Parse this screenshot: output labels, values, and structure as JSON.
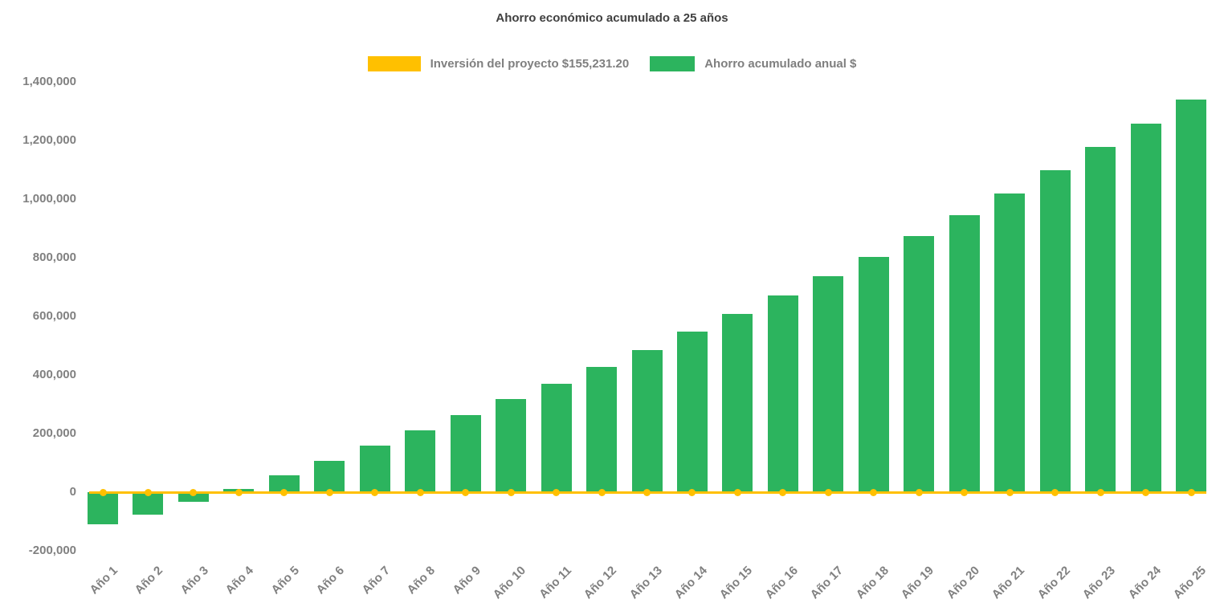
{
  "chart_data": {
    "type": "bar",
    "title": "Ahorro económico acumulado a 25 años",
    "categories": [
      "Año 1",
      "Año 2",
      "Año 3",
      "Año 4",
      "Año 5",
      "Año 6",
      "Año 7",
      "Año 8",
      "Año 9",
      "Año 10",
      "Año 11",
      "Año 12",
      "Año 13",
      "Año 14",
      "Año 15",
      "Año 16",
      "Año 17",
      "Año 18",
      "Año 19",
      "Año 20",
      "Año 21",
      "Año 22",
      "Año 23",
      "Año 24",
      "Año 25"
    ],
    "series": [
      {
        "name": "Inversión del proyecto $155,231.20",
        "type": "line",
        "color": "#FFC000",
        "marker": "circle",
        "stated_value_label": "$155,231.20",
        "values": [
          0,
          0,
          0,
          0,
          0,
          0,
          0,
          0,
          0,
          0,
          0,
          0,
          0,
          0,
          0,
          0,
          0,
          0,
          0,
          0,
          0,
          0,
          0,
          0,
          0
        ]
      },
      {
        "name": "Ahorro acumulado anual $",
        "type": "bar",
        "color": "#2CB45E",
        "values": [
          -110000,
          -76000,
          -33000,
          12000,
          58000,
          108000,
          160000,
          210000,
          262000,
          317000,
          371000,
          428000,
          486000,
          547000,
          607000,
          670000,
          736000,
          803000,
          873000,
          945000,
          1020000,
          1098000,
          1177000,
          1258000,
          1340000
        ]
      }
    ],
    "ylim": [
      -200000,
      1400000
    ],
    "ytick_step": 200000,
    "ytick_labels": [
      "-200,000",
      "0",
      "200,000",
      "400,000",
      "600,000",
      "800,000",
      "1,000,000",
      "1,200,000",
      "1,400,000"
    ],
    "xlabel": "",
    "ylabel": "",
    "grid": false,
    "legend_position": "top",
    "colors": {
      "bar_green": "#2CB45E",
      "line_yellow": "#FFC000",
      "title_text": "#404040",
      "axis_text": "#808080",
      "background": "#FFFFFF"
    }
  }
}
